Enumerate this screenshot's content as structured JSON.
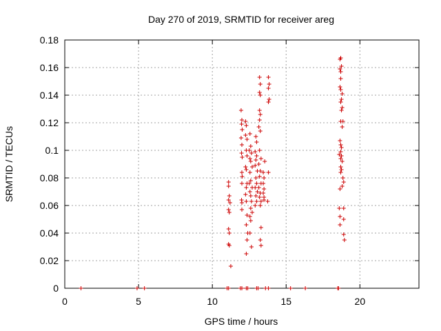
{
  "chart_data": {
    "type": "scatter",
    "title": "Day 270 of 2019, SRMTID for receiver areg",
    "xlabel": "GPS time / hours",
    "ylabel": "SRMTID / TECUs",
    "xlim": [
      0,
      24
    ],
    "ylim": [
      0,
      0.18
    ],
    "xticks": [
      0,
      5,
      10,
      15,
      20
    ],
    "xtick_labels": [
      "0",
      "5",
      "10",
      "15",
      "20"
    ],
    "yticks": [
      0,
      0.02,
      0.04,
      0.06,
      0.08,
      0.1,
      0.12,
      0.14,
      0.16,
      0.18
    ],
    "ytick_labels": [
      "0",
      "0.02",
      "0.04",
      "0.06",
      "0.08",
      "0.1",
      "0.12",
      "0.14",
      "0.16",
      "0.18"
    ],
    "grid": true,
    "marker": "+",
    "marker_color": "#cc0000",
    "series": [
      {
        "name": "SRMTID",
        "points": [
          [
            1.1,
            0
          ],
          [
            4.9,
            0
          ],
          [
            5.4,
            0
          ],
          [
            11.0,
            0
          ],
          [
            11.1,
            0
          ],
          [
            11.9,
            0
          ],
          [
            12.0,
            0
          ],
          [
            12.3,
            0
          ],
          [
            12.4,
            0
          ],
          [
            13.0,
            0
          ],
          [
            13.1,
            0
          ],
          [
            13.6,
            0
          ],
          [
            13.8,
            0
          ],
          [
            15.3,
            0
          ],
          [
            16.3,
            0
          ],
          [
            18.5,
            0
          ],
          [
            18.55,
            0
          ],
          [
            11.1,
            0.077
          ],
          [
            11.1,
            0.074
          ],
          [
            11.15,
            0.067
          ],
          [
            11.1,
            0.064
          ],
          [
            11.2,
            0.062
          ],
          [
            11.1,
            0.057
          ],
          [
            11.15,
            0.055
          ],
          [
            11.1,
            0.043
          ],
          [
            11.15,
            0.04
          ],
          [
            11.1,
            0.032
          ],
          [
            11.15,
            0.031
          ],
          [
            11.25,
            0.016
          ],
          [
            11.95,
            0.129
          ],
          [
            12.0,
            0.122
          ],
          [
            11.98,
            0.119
          ],
          [
            12.02,
            0.115
          ],
          [
            11.95,
            0.109
          ],
          [
            12.0,
            0.104
          ],
          [
            11.98,
            0.098
          ],
          [
            12.02,
            0.095
          ],
          [
            12.0,
            0.084
          ],
          [
            12.02,
            0.081
          ],
          [
            12.0,
            0.076
          ],
          [
            11.98,
            0.064
          ],
          [
            12.0,
            0.062
          ],
          [
            12.0,
            0.057
          ],
          [
            12.25,
            0.121
          ],
          [
            12.3,
            0.118
          ],
          [
            12.25,
            0.111
          ],
          [
            12.35,
            0.108
          ],
          [
            12.3,
            0.1
          ],
          [
            12.35,
            0.096
          ],
          [
            12.25,
            0.088
          ],
          [
            12.3,
            0.086
          ],
          [
            12.35,
            0.076
          ],
          [
            12.3,
            0.073
          ],
          [
            12.25,
            0.068
          ],
          [
            12.3,
            0.063
          ],
          [
            12.35,
            0.053
          ],
          [
            12.3,
            0.046
          ],
          [
            12.4,
            0.04
          ],
          [
            12.35,
            0.035
          ],
          [
            12.3,
            0.025
          ],
          [
            12.55,
            0.112
          ],
          [
            12.6,
            0.103
          ],
          [
            12.5,
            0.1
          ],
          [
            12.65,
            0.098
          ],
          [
            12.55,
            0.094
          ],
          [
            12.6,
            0.092
          ],
          [
            12.7,
            0.088
          ],
          [
            12.55,
            0.084
          ],
          [
            12.6,
            0.078
          ],
          [
            12.5,
            0.076
          ],
          [
            12.7,
            0.073
          ],
          [
            12.55,
            0.07
          ],
          [
            12.6,
            0.067
          ],
          [
            12.65,
            0.063
          ],
          [
            12.6,
            0.058
          ],
          [
            12.7,
            0.055
          ],
          [
            12.55,
            0.052
          ],
          [
            12.6,
            0.049
          ],
          [
            12.55,
            0.04
          ],
          [
            12.65,
            0.03
          ],
          [
            12.95,
            0.11
          ],
          [
            13.0,
            0.106
          ],
          [
            12.9,
            0.099
          ],
          [
            13.0,
            0.096
          ],
          [
            12.95,
            0.093
          ],
          [
            12.9,
            0.089
          ],
          [
            13.05,
            0.085
          ],
          [
            12.95,
            0.08
          ],
          [
            13.0,
            0.076
          ],
          [
            12.9,
            0.073
          ],
          [
            13.05,
            0.07
          ],
          [
            12.95,
            0.067
          ],
          [
            13.0,
            0.063
          ],
          [
            12.9,
            0.06
          ],
          [
            13.2,
            0.153
          ],
          [
            13.25,
            0.148
          ],
          [
            13.2,
            0.142
          ],
          [
            13.25,
            0.14
          ],
          [
            13.2,
            0.129
          ],
          [
            13.25,
            0.126
          ],
          [
            13.2,
            0.122
          ],
          [
            13.15,
            0.117
          ],
          [
            13.25,
            0.114
          ],
          [
            13.2,
            0.1
          ],
          [
            13.3,
            0.094
          ],
          [
            13.15,
            0.09
          ],
          [
            13.25,
            0.085
          ],
          [
            13.2,
            0.081
          ],
          [
            13.3,
            0.076
          ],
          [
            13.15,
            0.073
          ],
          [
            13.25,
            0.069
          ],
          [
            13.2,
            0.066
          ],
          [
            13.3,
            0.063
          ],
          [
            13.25,
            0.06
          ],
          [
            13.3,
            0.044
          ],
          [
            13.25,
            0.035
          ],
          [
            13.3,
            0.031
          ],
          [
            13.45,
            0.084
          ],
          [
            13.5,
            0.08
          ],
          [
            13.45,
            0.076
          ],
          [
            13.5,
            0.072
          ],
          [
            13.45,
            0.069
          ],
          [
            13.5,
            0.066
          ],
          [
            13.55,
            0.092
          ],
          [
            13.5,
            0.064
          ],
          [
            13.8,
            0.153
          ],
          [
            13.85,
            0.148
          ],
          [
            13.8,
            0.145
          ],
          [
            13.85,
            0.137
          ],
          [
            13.8,
            0.135
          ],
          [
            13.8,
            0.084
          ],
          [
            13.75,
            0.063
          ],
          [
            18.65,
            0.166
          ],
          [
            18.7,
            0.167
          ],
          [
            18.65,
            0.159
          ],
          [
            18.7,
            0.157
          ],
          [
            18.75,
            0.161
          ],
          [
            18.7,
            0.152
          ],
          [
            18.65,
            0.146
          ],
          [
            18.7,
            0.144
          ],
          [
            18.8,
            0.141
          ],
          [
            18.75,
            0.137
          ],
          [
            18.7,
            0.135
          ],
          [
            18.8,
            0.131
          ],
          [
            18.75,
            0.129
          ],
          [
            18.7,
            0.121
          ],
          [
            18.85,
            0.121
          ],
          [
            18.8,
            0.117
          ],
          [
            18.65,
            0.107
          ],
          [
            18.7,
            0.104
          ],
          [
            18.75,
            0.102
          ],
          [
            18.7,
            0.099
          ],
          [
            18.6,
            0.097
          ],
          [
            18.75,
            0.096
          ],
          [
            18.7,
            0.094
          ],
          [
            18.8,
            0.092
          ],
          [
            18.7,
            0.088
          ],
          [
            18.75,
            0.086
          ],
          [
            18.7,
            0.084
          ],
          [
            18.85,
            0.08
          ],
          [
            18.9,
            0.077
          ],
          [
            18.8,
            0.074
          ],
          [
            18.65,
            0.072
          ],
          [
            18.6,
            0.058
          ],
          [
            18.9,
            0.058
          ],
          [
            18.65,
            0.052
          ],
          [
            18.9,
            0.05
          ],
          [
            18.65,
            0.046
          ],
          [
            18.9,
            0.039
          ],
          [
            18.95,
            0.035
          ]
        ]
      }
    ]
  }
}
